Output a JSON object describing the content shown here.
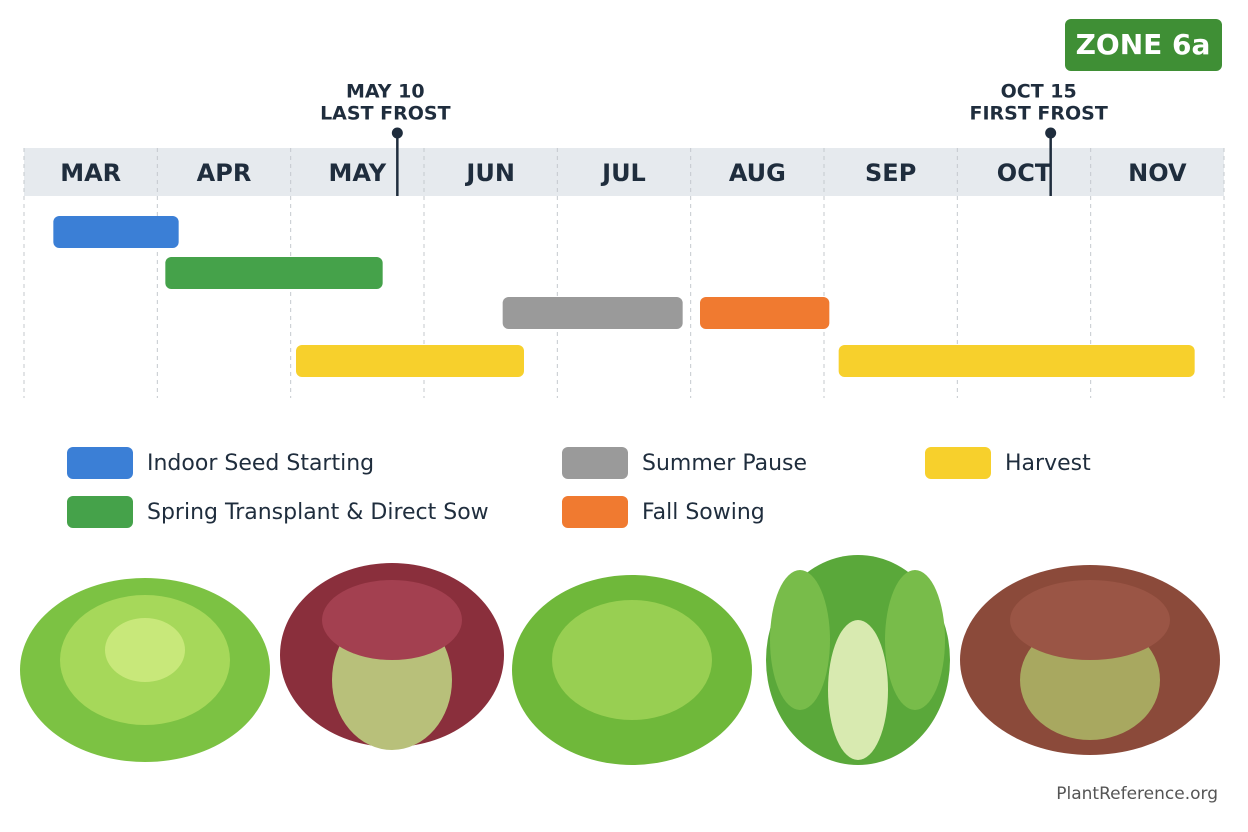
{
  "chart_data": {
    "type": "gantt",
    "badge": "ZONE 6a",
    "source": "PlantReference.org",
    "categories": [
      "MAR",
      "APR",
      "MAY",
      "JUN",
      "JUL",
      "AUG",
      "SEP",
      "OCT",
      "NOV"
    ],
    "xlim": [
      0,
      9
    ],
    "grid": true,
    "markers": [
      {
        "value": 2.8,
        "label": [
          "MAY 10",
          "LAST FROST"
        ]
      },
      {
        "value": 7.7,
        "label": [
          "OCT 15",
          "FIRST FROST"
        ]
      }
    ],
    "series": [
      {
        "name": "Indoor Seed Starting",
        "color": "#3b7fd6",
        "spans": [
          {
            "start": 0.22,
            "end": 1.16
          }
        ]
      },
      {
        "name": "Spring Transplant & Direct Sow",
        "color": "#45a24a",
        "spans": [
          {
            "start": 1.06,
            "end": 2.69
          }
        ]
      },
      {
        "name": "Summer Pause",
        "color": "#9a9a9a",
        "spans": [
          {
            "start": 3.59,
            "end": 4.94
          }
        ]
      },
      {
        "name": "Fall Sowing",
        "color": "#f07a30",
        "spans": [
          {
            "start": 5.07,
            "end": 6.04
          }
        ]
      },
      {
        "name": "Harvest",
        "color": "#f7d02c",
        "spans": [
          {
            "start": 2.04,
            "end": 3.75
          },
          {
            "start": 6.11,
            "end": 8.78
          }
        ]
      }
    ]
  }
}
